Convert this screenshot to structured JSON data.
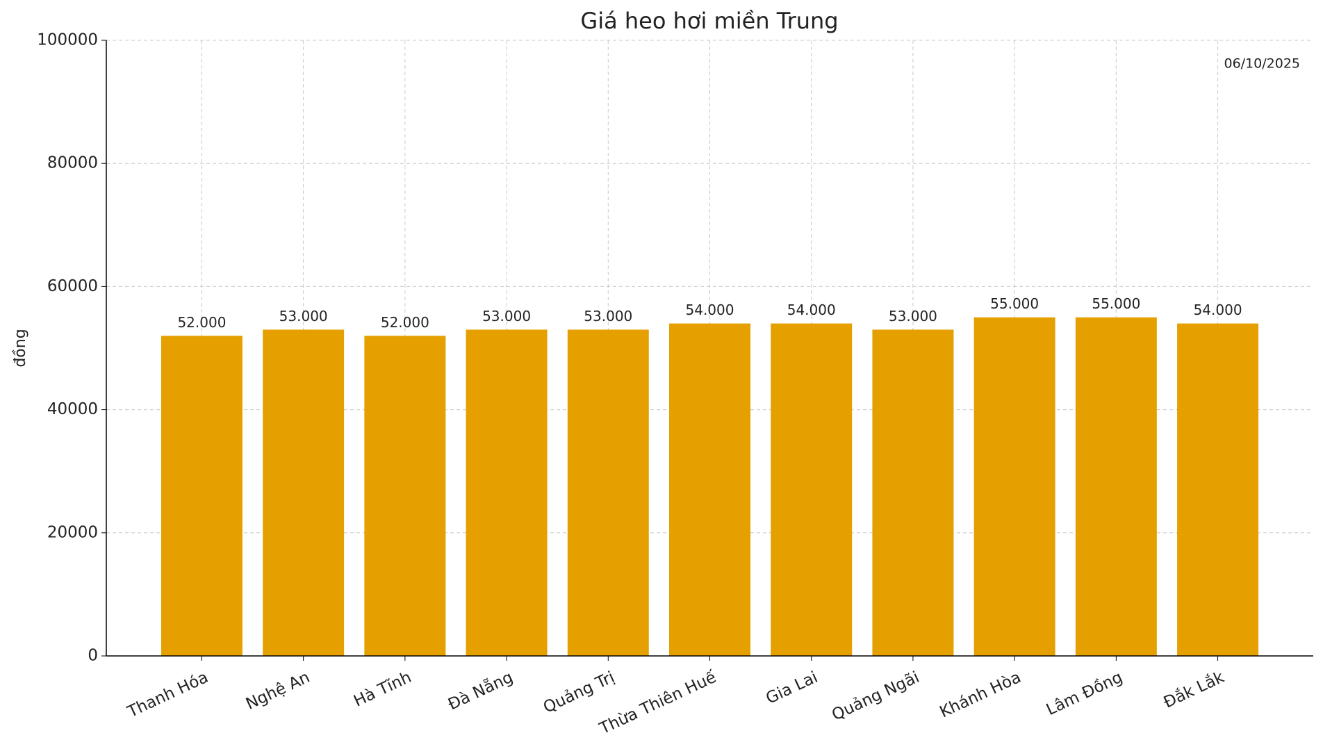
{
  "chart_data": {
    "type": "bar",
    "title": "Giá heo hơi miền Trung",
    "y_label": "đồng",
    "annotation": "06/10/2025",
    "categories": [
      "Thanh Hóa",
      "Nghệ An",
      "Hà Tĩnh",
      "Đà Nẵng",
      "Quảng Trị",
      "Thừa Thiên Huế",
      "Gia Lai",
      "Quảng Ngãi",
      "Khánh Hòa",
      "Lâm Đồng",
      "Đắk Lắk"
    ],
    "values": [
      52000,
      53000,
      52000,
      53000,
      53000,
      54000,
      54000,
      53000,
      55000,
      55000,
      54000
    ],
    "value_labels": [
      "52.000",
      "53.000",
      "52.000",
      "53.000",
      "53.000",
      "54.000",
      "54.000",
      "53.000",
      "55.000",
      "55.000",
      "54.000"
    ],
    "color": "#e5a000",
    "ylim": [
      0,
      100000
    ],
    "yticks": [
      0,
      20000,
      40000,
      60000,
      80000,
      100000
    ],
    "grid": true
  }
}
